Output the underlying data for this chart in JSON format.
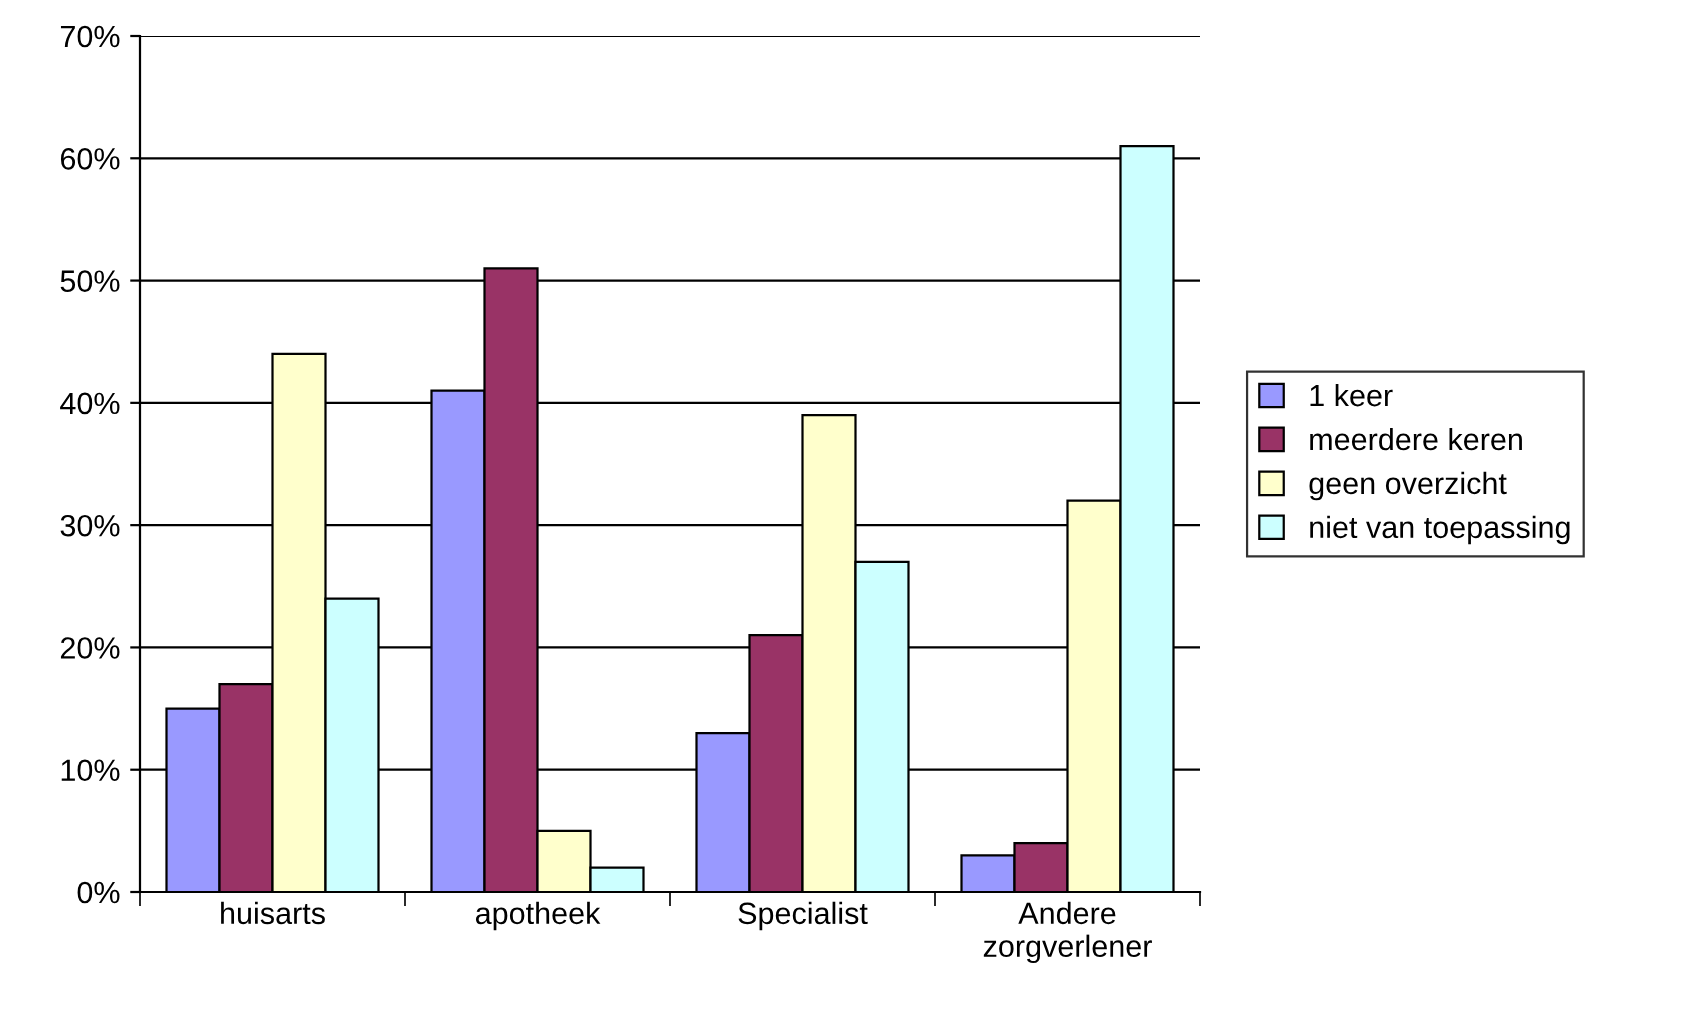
{
  "chart_data": {
    "type": "bar",
    "categories": [
      "huisarts",
      "apotheek",
      "Specialist",
      "Andere\nzorgverlener"
    ],
    "series": [
      {
        "name": "1 keer",
        "color": "#9999ff",
        "values": [
          15,
          41,
          13,
          3
        ]
      },
      {
        "name": "meerdere keren",
        "color": "#993366",
        "values": [
          17,
          51,
          21,
          4
        ]
      },
      {
        "name": "geen overzicht",
        "color": "#ffffcc",
        "values": [
          44,
          5,
          39,
          32
        ]
      },
      {
        "name": "niet van toepassing",
        "color": "#ccffff",
        "values": [
          24,
          2,
          27,
          61
        ]
      }
    ],
    "ylim": [
      0,
      70
    ],
    "yticks": [
      {
        "value": 0,
        "label": "0%"
      },
      {
        "value": 10,
        "label": "10%"
      },
      {
        "value": 20,
        "label": "20%"
      },
      {
        "value": 30,
        "label": "30%"
      },
      {
        "value": 40,
        "label": "40%"
      },
      {
        "value": 50,
        "label": "50%"
      },
      {
        "value": 60,
        "label": "60%"
      },
      {
        "value": 70,
        "label": "70%"
      }
    ],
    "grid": "y",
    "legend": "right"
  }
}
